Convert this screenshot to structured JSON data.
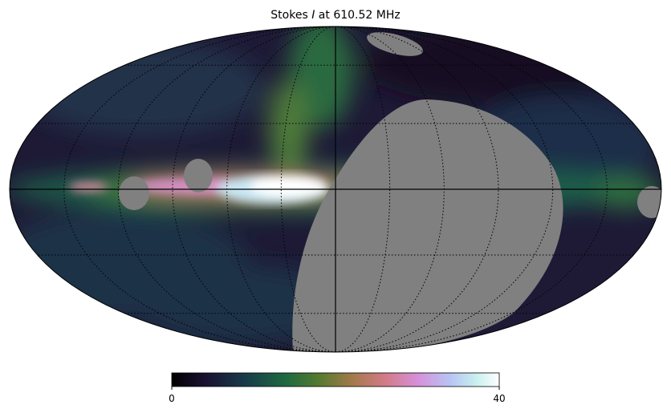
{
  "chart_data": {
    "type": "mollweide",
    "title_parts": [
      "Stokes",
      "I",
      "at 610.52 MHz"
    ],
    "colorbar": {
      "lim": [
        0,
        40
      ],
      "ticks": [
        0,
        40
      ]
    }
  }
}
